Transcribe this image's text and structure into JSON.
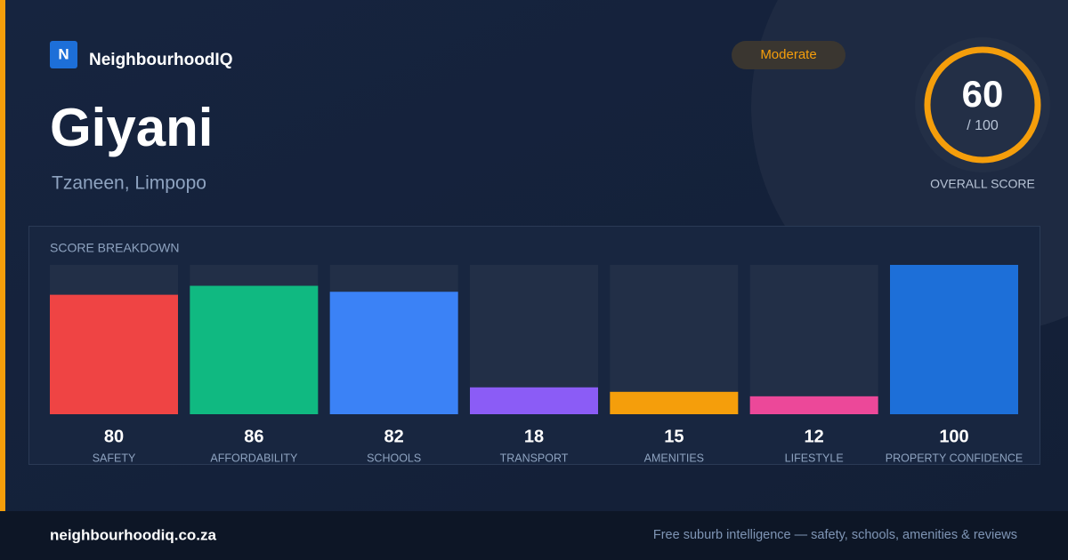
{
  "brand": {
    "logo": "N",
    "name": "NeighbourhoodIQ"
  },
  "header": {
    "title": "Giyani",
    "subtitle": "Tzaneen, Limpopo",
    "badge": "Moderate"
  },
  "score": {
    "value": 60,
    "scale": "/ 100",
    "label": "OVERALL SCORE"
  },
  "chart_data": {
    "type": "bar",
    "title": "SCORE BREAKDOWN",
    "categories": [
      "SAFETY",
      "AFFORDABILITY",
      "SCHOOLS",
      "TRANSPORT",
      "AMENITIES",
      "LIFESTYLE",
      "PROPERTY CONFIDENCE"
    ],
    "values": [
      80,
      86,
      82,
      18,
      15,
      12,
      100
    ],
    "colors": [
      "#ef4444",
      "#10b981",
      "#3b82f6",
      "#8b5cf6",
      "#f59e0b",
      "#ec4899",
      "#1d6fd8"
    ],
    "ylim": [
      0,
      100
    ]
  },
  "footer": {
    "url": "neighbourhoodiq.co.za",
    "tagline": "Free suburb intelligence — safety, schools, amenities & reviews"
  }
}
